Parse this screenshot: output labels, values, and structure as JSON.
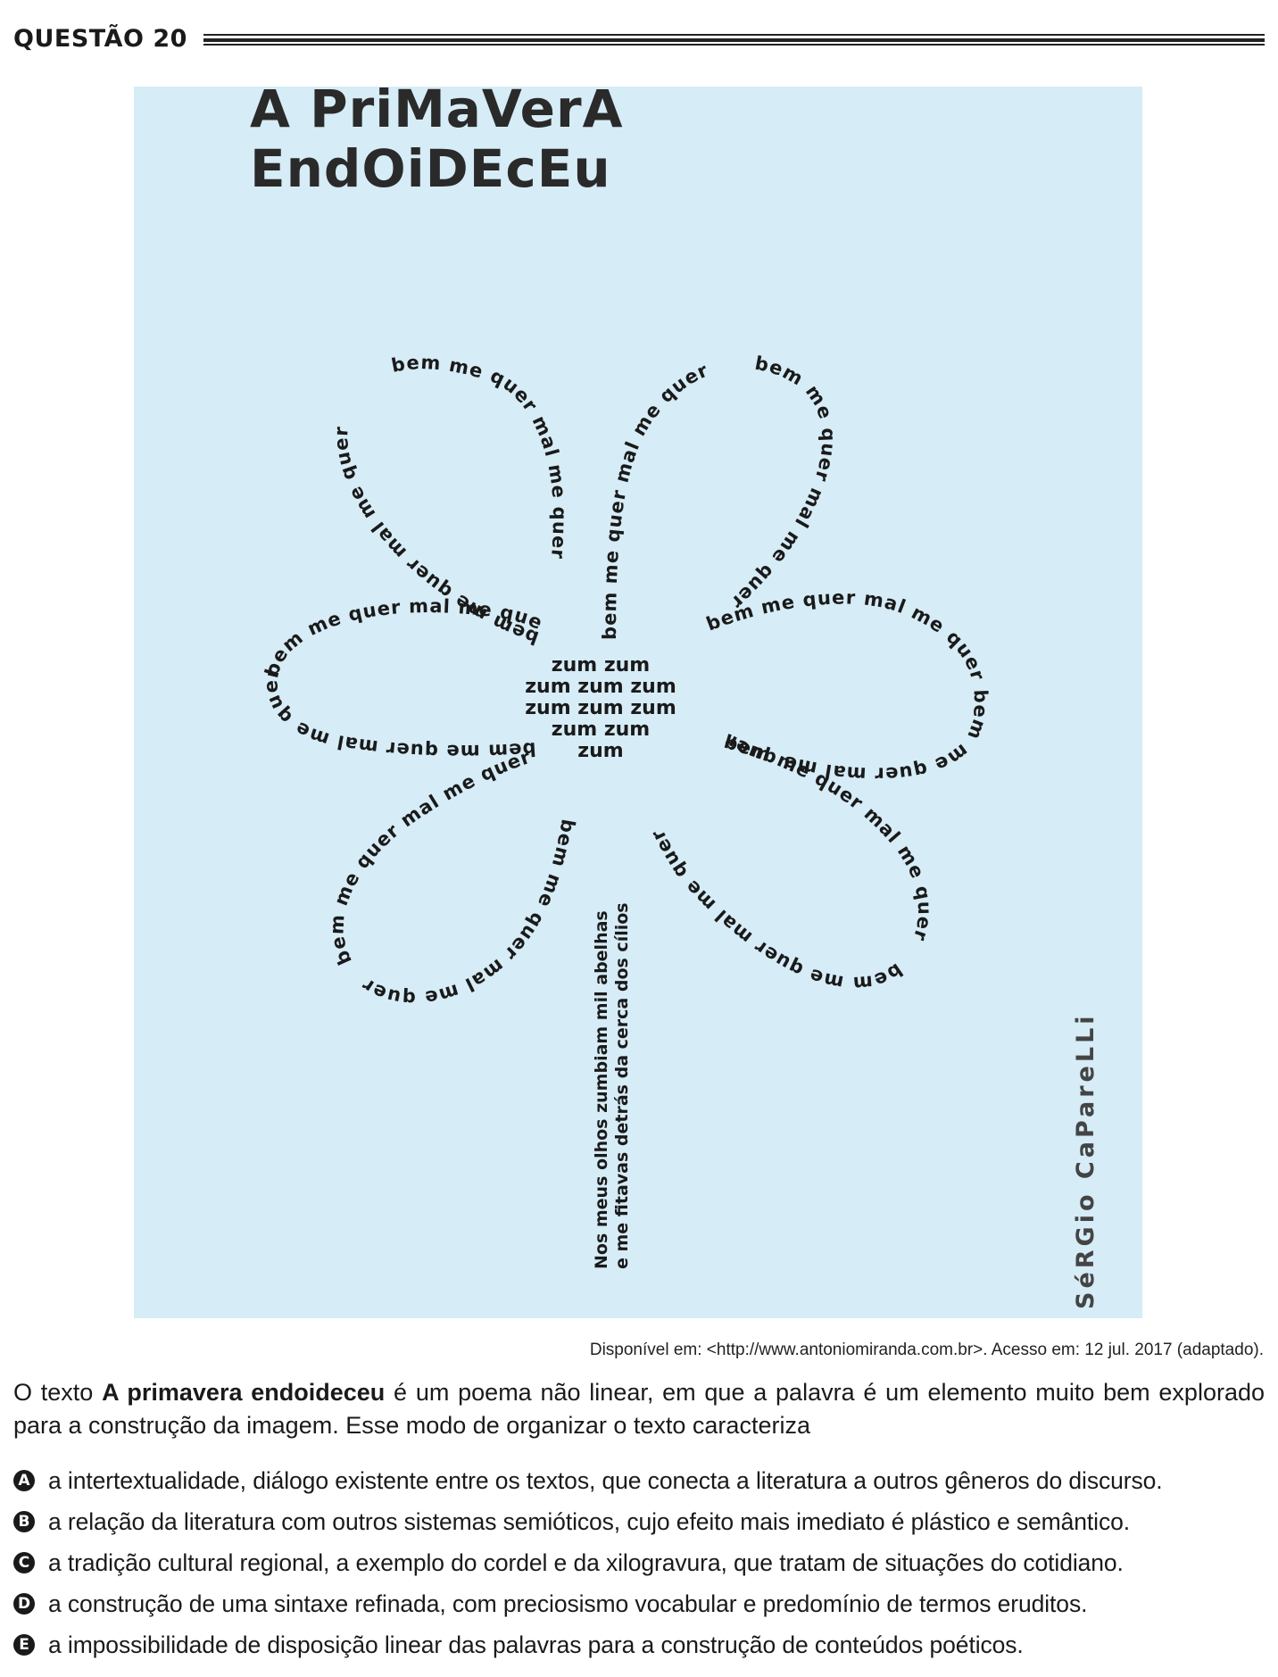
{
  "header": {
    "question_label": "QUESTÃO 20"
  },
  "poem": {
    "title_line1": "A PriMaVerA",
    "title_line2": "EndOiDEcEu",
    "petal_phrase": "bem me quer mal me quer",
    "center_lines": [
      "zum zum",
      "zum zum zum",
      "zum zum zum",
      "zum zum",
      "zum"
    ],
    "stem_line1": "Nos meus olhos zumbiam mil abelhas",
    "stem_line2": "e me fitavas detrás da cerca dos cílios",
    "author": "SéRGio CaPareLLi"
  },
  "source": "Disponível em: <http://www.antoniomiranda.com.br>. Acesso em: 12 jul. 2017 (adaptado).",
  "stem": {
    "part1": "O texto ",
    "bold": "A primavera endoideceu",
    "part2": " é um poema não linear, em que a palavra é um elemento muito bem explorado para a construção da imagem. Esse modo de organizar o texto caracteriza"
  },
  "options": [
    {
      "letter": "A",
      "text": "a intertextualidade, diálogo existente entre os textos, que conecta a literatura a outros gêneros do discurso."
    },
    {
      "letter": "B",
      "text": "a relação da literatura com outros sistemas semióticos, cujo efeito mais imediato é plástico e semântico."
    },
    {
      "letter": "C",
      "text": "a tradição cultural regional, a exemplo do cordel e da xilogravura, que tratam de situações do cotidiano."
    },
    {
      "letter": "D",
      "text": "a construção de uma sintaxe refinada, com preciosismo vocabular e predomínio de termos eruditos."
    },
    {
      "letter": "E",
      "text": "a impossibilidade de disposição linear das palavras para a construção de conteúdos poéticos."
    }
  ],
  "colors": {
    "poem_background": "#d6ecf7",
    "ink": "#1a1a1a"
  }
}
